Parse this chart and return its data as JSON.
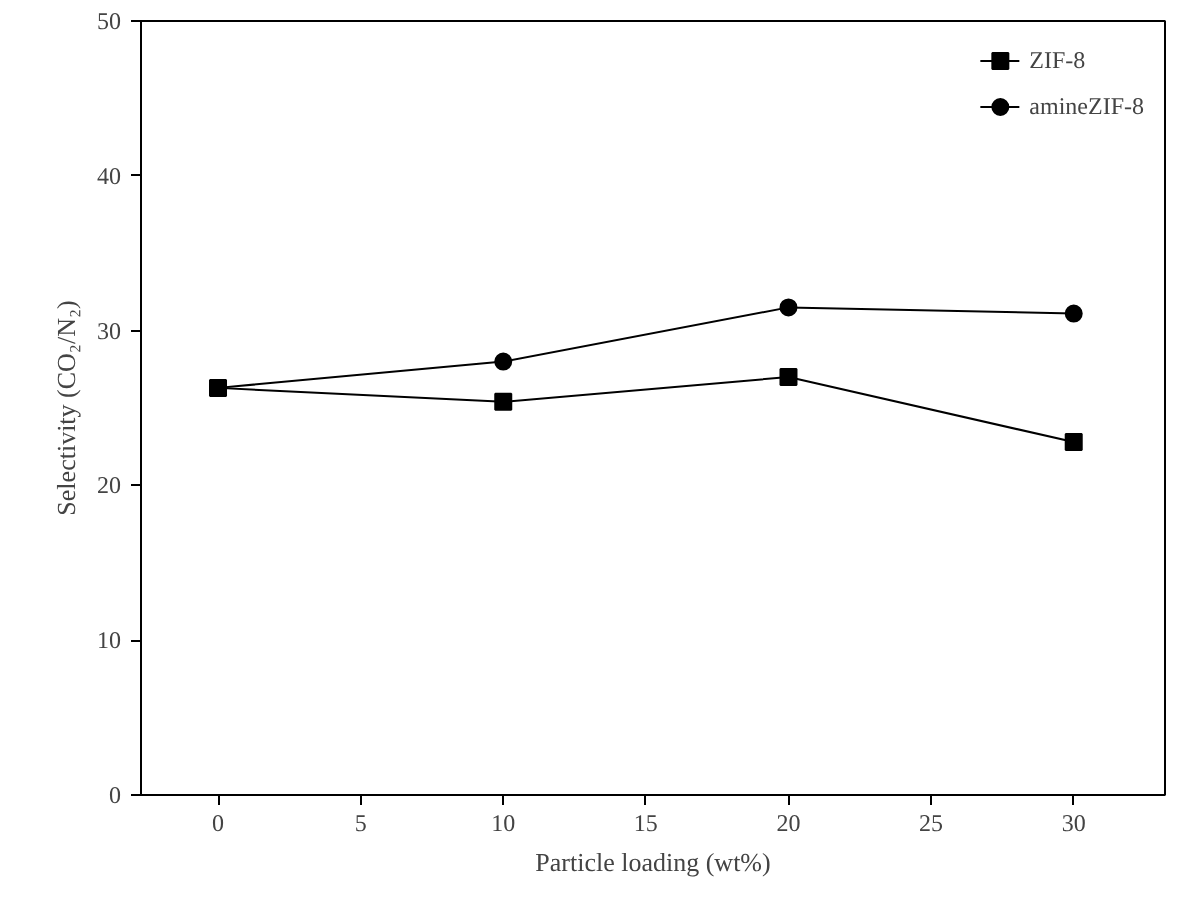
{
  "chart_data": {
    "type": "line",
    "xlabel": "Particle loading (wt%)",
    "ylabel": "Selectivity (CO₂/N₂)",
    "x": [
      0,
      10,
      20,
      30
    ],
    "series": [
      {
        "name": "ZIF-8",
        "color": "#000000",
        "marker": "square",
        "values": [
          26.3,
          25.4,
          27.0,
          22.8
        ]
      },
      {
        "name": "amineZIF-8",
        "color": "#000000",
        "marker": "circle",
        "values": [
          26.3,
          28.0,
          31.5,
          31.1
        ]
      }
    ],
    "xlim": [
      -2.7,
      33.2
    ],
    "ylim": [
      0,
      50
    ],
    "xticks": [
      0,
      5,
      10,
      15,
      20,
      25,
      30
    ],
    "yticks": [
      0,
      10,
      20,
      30,
      40,
      50
    ],
    "grid": false,
    "legend": "top right",
    "line_style": "solid"
  }
}
